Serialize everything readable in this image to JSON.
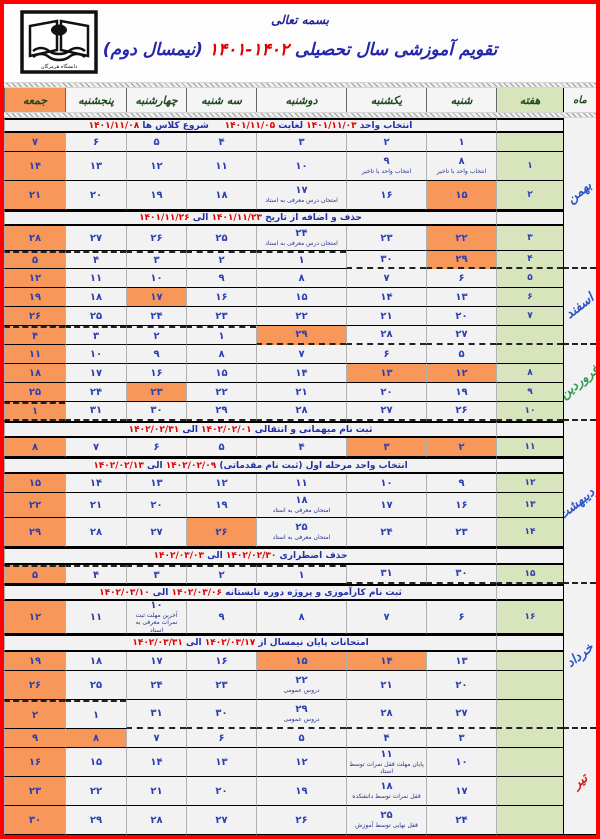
{
  "header": {
    "bismillah": "بسمه تعالی",
    "title_prefix": "تقویم آموزشی سال تحصیلی ",
    "title_years": "۱۴۰۲-۱۴۰۱",
    "title_suffix": " (نیمسال دوم)",
    "logo_caption": "دانشگاه هرمزگان"
  },
  "columns": {
    "month": "ماه",
    "week": "هفته",
    "days": [
      "شنبه",
      "یکشنبه",
      "دوشنبه",
      "سه شنبه",
      "چهارشنبه",
      "پنجشنبه",
      "جمعه"
    ]
  },
  "months": [
    {
      "label": "بهمن",
      "color": "#2f55cc"
    },
    {
      "label": "اسفند",
      "color": "#2f55cc"
    },
    {
      "label": "فروردین",
      "color": "#2f9e4f"
    },
    {
      "label": "اردیبهشت",
      "color": "#2f55cc"
    },
    {
      "label": "خرداد",
      "color": "#2f55cc"
    },
    {
      "label": "تیر",
      "color": "#d81a1a"
    }
  ],
  "colors": {
    "page_border": "#ff0000",
    "holiday_orange": "#f8975a",
    "week_green": "#d8e4bc",
    "number_blue": "#2d3eb0",
    "date_red": "#e00000"
  },
  "rows": [
    {
      "t": "b",
      "seg": [
        [
          "انتخاب واحد ",
          "b"
        ],
        [
          "۱۴۰۱/۱۱/۰۳",
          "r"
        ],
        [
          " لغایت ",
          "b"
        ],
        [
          "۱۴۰۱/۱۱/۰۵",
          "r"
        ],
        [
          "     شروع کلاس ها ",
          "b"
        ],
        [
          "۱۴۰۱/۱۱/۰۸",
          "r"
        ]
      ]
    },
    {
      "t": "w",
      "wk": "",
      "cells": [
        {
          "d": "۱"
        },
        {
          "d": "۲"
        },
        {
          "d": "۳"
        },
        {
          "d": "۴"
        },
        {
          "d": "۵"
        },
        {
          "d": "۶"
        },
        {
          "d": "۷"
        }
      ]
    },
    {
      "t": "w",
      "wk": "۱",
      "cells": [
        {
          "d": "۸",
          "n": "انتخاب واحد با تاخیر"
        },
        {
          "d": "۹",
          "n": "انتخاب واحد با تاخیر"
        },
        {
          "d": "۱۰"
        },
        {
          "d": "۱۱"
        },
        {
          "d": "۱۲"
        },
        {
          "d": "۱۳"
        },
        {
          "d": "۱۴"
        }
      ]
    },
    {
      "t": "w",
      "wk": "۲",
      "cells": [
        {
          "d": "۱۵",
          "hl": 1
        },
        {
          "d": "۱۶"
        },
        {
          "d": "۱۷",
          "n": "امتحان درس معرفی به استاد"
        },
        {
          "d": "۱۸"
        },
        {
          "d": "۱۹"
        },
        {
          "d": "۲۰"
        },
        {
          "d": "۲۱"
        }
      ]
    },
    {
      "t": "b",
      "seg": [
        [
          "حذف و اضافه از تاریخ ",
          "b"
        ],
        [
          "۱۴۰۱/۱۱/۲۳",
          "r"
        ],
        [
          " الی ",
          "b"
        ],
        [
          "۱۴۰۱/۱۱/۲۶",
          "r"
        ]
      ]
    },
    {
      "t": "w",
      "wk": "۳",
      "cells": [
        {
          "d": "۲۲",
          "hl": 1
        },
        {
          "d": "۲۳"
        },
        {
          "d": "۲۴",
          "n": "امتحان درس معرفی به استاد"
        },
        {
          "d": "۲۵"
        },
        {
          "d": "۲۶"
        },
        {
          "d": "۲۷"
        },
        {
          "d": "۲۸"
        }
      ]
    },
    {
      "t": "w",
      "wk": "۴",
      "wdb": 1,
      "cells": [
        {
          "d": "۲۹",
          "hl": 1,
          "db": 1
        },
        {
          "d": "۳۰",
          "db": 1
        },
        {
          "d": "۱",
          "dt": 1
        },
        {
          "d": "۲",
          "dt": 1
        },
        {
          "d": "۳",
          "dt": 1
        },
        {
          "d": "۴",
          "dt": 1
        },
        {
          "d": "۵",
          "dt": 1
        }
      ]
    },
    {
      "t": "w",
      "wk": "۵",
      "cells": [
        {
          "d": "۶"
        },
        {
          "d": "۷"
        },
        {
          "d": "۸"
        },
        {
          "d": "۹"
        },
        {
          "d": "۱۰"
        },
        {
          "d": "۱۱"
        },
        {
          "d": "۱۲"
        }
      ]
    },
    {
      "t": "w",
      "wk": "۶",
      "cells": [
        {
          "d": "۱۳"
        },
        {
          "d": "۱۴"
        },
        {
          "d": "۱۵"
        },
        {
          "d": "۱۶"
        },
        {
          "d": "۱۷",
          "hl": 1
        },
        {
          "d": "۱۸"
        },
        {
          "d": "۱۹"
        }
      ]
    },
    {
      "t": "w",
      "wk": "۷",
      "cells": [
        {
          "d": "۲۰"
        },
        {
          "d": "۲۱"
        },
        {
          "d": "۲۲"
        },
        {
          "d": "۲۳"
        },
        {
          "d": "۲۴"
        },
        {
          "d": "۲۵"
        },
        {
          "d": "۲۶"
        }
      ]
    },
    {
      "t": "w",
      "wk": "",
      "wdb": 1,
      "cells": [
        {
          "d": "۲۷",
          "db": 1
        },
        {
          "d": "۲۸",
          "db": 1
        },
        {
          "d": "۲۹",
          "hl": 1,
          "db": 1
        },
        {
          "d": "۱",
          "dt": 1
        },
        {
          "d": "۲",
          "dt": 1
        },
        {
          "d": "۳",
          "dt": 1
        },
        {
          "d": "۴",
          "dt": 1
        }
      ]
    },
    {
      "t": "w",
      "wk": "",
      "cells": [
        {
          "d": "۵"
        },
        {
          "d": "۶"
        },
        {
          "d": "۷"
        },
        {
          "d": "۸"
        },
        {
          "d": "۹"
        },
        {
          "d": "۱۰"
        },
        {
          "d": "۱۱"
        }
      ]
    },
    {
      "t": "w",
      "wk": "۸",
      "cells": [
        {
          "d": "۱۲",
          "hl": 1
        },
        {
          "d": "۱۳",
          "hl": 1
        },
        {
          "d": "۱۴"
        },
        {
          "d": "۱۵"
        },
        {
          "d": "۱۶"
        },
        {
          "d": "۱۷"
        },
        {
          "d": "۱۸"
        }
      ]
    },
    {
      "t": "w",
      "wk": "۹",
      "cells": [
        {
          "d": "۱۹"
        },
        {
          "d": "۲۰"
        },
        {
          "d": "۲۱"
        },
        {
          "d": "۲۲"
        },
        {
          "d": "۲۳",
          "hl": 1
        },
        {
          "d": "۲۴"
        },
        {
          "d": "۲۵"
        }
      ]
    },
    {
      "t": "w",
      "wk": "۱۰",
      "wdb": 1,
      "cells": [
        {
          "d": "۲۶",
          "db": 1
        },
        {
          "d": "۲۷",
          "db": 1
        },
        {
          "d": "۲۸",
          "db": 1
        },
        {
          "d": "۲۹",
          "db": 1
        },
        {
          "d": "۳۰",
          "db": 1
        },
        {
          "d": "۳۱",
          "db": 1
        },
        {
          "d": "۱",
          "dt": 1,
          "db": 1
        }
      ]
    },
    {
      "t": "b",
      "seg": [
        [
          "ثبت نام میهمانی و انتقالی ",
          "b"
        ],
        [
          "۱۴۰۲/۰۲/۰۱",
          "r"
        ],
        [
          " الی ",
          "b"
        ],
        [
          "۱۴۰۲/۰۲/۳۱",
          "r"
        ]
      ]
    },
    {
      "t": "w",
      "wk": "۱۱",
      "cells": [
        {
          "d": "۲",
          "hl": 1
        },
        {
          "d": "۳",
          "hl": 1
        },
        {
          "d": "۴"
        },
        {
          "d": "۵"
        },
        {
          "d": "۶"
        },
        {
          "d": "۷"
        },
        {
          "d": "۸"
        }
      ]
    },
    {
      "t": "b",
      "seg": [
        [
          "انتخاب واحد مرحله اول (ثبت نام مقدماتی) ",
          "b"
        ],
        [
          "۱۴۰۲/۰۲/۰۹",
          "r"
        ],
        [
          " الی ",
          "b"
        ],
        [
          "۱۴۰۲/۰۲/۱۳",
          "r"
        ]
      ]
    },
    {
      "t": "w",
      "wk": "۱۲",
      "cells": [
        {
          "d": "۹"
        },
        {
          "d": "۱۰"
        },
        {
          "d": "۱۱"
        },
        {
          "d": "۱۲"
        },
        {
          "d": "۱۳"
        },
        {
          "d": "۱۴"
        },
        {
          "d": "۱۵"
        }
      ]
    },
    {
      "t": "w",
      "wk": "۱۳",
      "cells": [
        {
          "d": "۱۶"
        },
        {
          "d": "۱۷"
        },
        {
          "d": "۱۸",
          "n": "امتحان معرفی به استاد"
        },
        {
          "d": "۱۹"
        },
        {
          "d": "۲۰"
        },
        {
          "d": "۲۱"
        },
        {
          "d": "۲۲"
        }
      ]
    },
    {
      "t": "w",
      "wk": "۱۴",
      "cells": [
        {
          "d": "۲۳"
        },
        {
          "d": "۲۴"
        },
        {
          "d": "۲۵",
          "n": "امتحان معرفی به استاد"
        },
        {
          "d": "۲۶",
          "hl": 1
        },
        {
          "d": "۲۷"
        },
        {
          "d": "۲۸"
        },
        {
          "d": "۲۹"
        }
      ]
    },
    {
      "t": "b",
      "seg": [
        [
          "حذف اضطراری ",
          "b"
        ],
        [
          "۱۴۰۲/۰۲/۳۰",
          "r"
        ],
        [
          " الی ",
          "b"
        ],
        [
          "۱۴۰۲/۰۳/۰۳",
          "r"
        ]
      ]
    },
    {
      "t": "w",
      "wk": "۱۵",
      "wdb": 1,
      "cells": [
        {
          "d": "۳۰",
          "db": 1
        },
        {
          "d": "۳۱",
          "db": 1
        },
        {
          "d": "۱",
          "dt": 1
        },
        {
          "d": "۲",
          "dt": 1
        },
        {
          "d": "۳",
          "dt": 1
        },
        {
          "d": "۴",
          "dt": 1
        },
        {
          "d": "۵",
          "dt": 1
        }
      ]
    },
    {
      "t": "b",
      "seg": [
        [
          "ثبت نام کارآموزی و پروژه دوره تابستانه ",
          "b"
        ],
        [
          "۱۴۰۲/۰۳/۰۶",
          "r"
        ],
        [
          " الی ",
          "b"
        ],
        [
          "۱۴۰۲/۰۳/۱۰",
          "r"
        ]
      ]
    },
    {
      "t": "w",
      "wk": "۱۶",
      "cells": [
        {
          "d": "۶"
        },
        {
          "d": "۷"
        },
        {
          "d": "۸"
        },
        {
          "d": "۹"
        },
        {
          "d": "۱۰",
          "n": "آخرین مهلت ثبت نمرات معرفی به استاد"
        },
        {
          "d": "۱۱"
        },
        {
          "d": "۱۲"
        }
      ]
    },
    {
      "t": "b",
      "seg": [
        [
          "امتحانات پایان نیمسال از ",
          "b"
        ],
        [
          "۱۴۰۲/۰۳/۱۷",
          "r"
        ],
        [
          " الی ",
          "b"
        ],
        [
          "۱۴۰۲/۰۳/۳۱",
          "r"
        ]
      ]
    },
    {
      "t": "w",
      "wk": "",
      "cells": [
        {
          "d": "۱۳"
        },
        {
          "d": "۱۴",
          "hl": 1
        },
        {
          "d": "۱۵",
          "hl": 1
        },
        {
          "d": "۱۶"
        },
        {
          "d": "۱۷"
        },
        {
          "d": "۱۸"
        },
        {
          "d": "۱۹"
        }
      ]
    },
    {
      "t": "w",
      "wk": "",
      "cells": [
        {
          "d": "۲۰"
        },
        {
          "d": "۲۱"
        },
        {
          "d": "۲۲",
          "n": "دروس عمومی"
        },
        {
          "d": "۲۳"
        },
        {
          "d": "۲۴"
        },
        {
          "d": "۲۵"
        },
        {
          "d": "۲۶"
        }
      ]
    },
    {
      "t": "w",
      "wk": "",
      "wdb": 1,
      "cells": [
        {
          "d": "۲۷",
          "db": 1
        },
        {
          "d": "۲۸",
          "db": 1
        },
        {
          "d": "۲۹",
          "db": 1,
          "n": "دروس عمومی"
        },
        {
          "d": "۳۰",
          "db": 1
        },
        {
          "d": "۳۱",
          "db": 1
        },
        {
          "d": "۱",
          "dt": 1
        },
        {
          "d": "۲",
          "dt": 1
        }
      ]
    },
    {
      "t": "w",
      "wk": "",
      "cells": [
        {
          "d": "۳"
        },
        {
          "d": "۴"
        },
        {
          "d": "۵"
        },
        {
          "d": "۶"
        },
        {
          "d": "۷"
        },
        {
          "d": "۸",
          "hl": 1
        },
        {
          "d": "۹"
        }
      ]
    },
    {
      "t": "w",
      "wk": "",
      "cells": [
        {
          "d": "۱۰"
        },
        {
          "d": "۱۱",
          "n": "پایان مهلت قفل نمرات توسط استاد"
        },
        {
          "d": "۱۲"
        },
        {
          "d": "۱۳"
        },
        {
          "d": "۱۴"
        },
        {
          "d": "۱۵"
        },
        {
          "d": "۱۶"
        }
      ]
    },
    {
      "t": "w",
      "wk": "",
      "cells": [
        {
          "d": "۱۷"
        },
        {
          "d": "۱۸",
          "n": "قفل نمرات توسط دانشکده"
        },
        {
          "d": "۱۹"
        },
        {
          "d": "۲۰"
        },
        {
          "d": "۲۱"
        },
        {
          "d": "۲۲"
        },
        {
          "d": "۲۳"
        }
      ]
    },
    {
      "t": "w",
      "wk": "",
      "cells": [
        {
          "d": "۲۴"
        },
        {
          "d": "۲۵",
          "n": "قفل نهایی توسط آموزش"
        },
        {
          "d": "۲۶"
        },
        {
          "d": "۲۷"
        },
        {
          "d": "۲۸"
        },
        {
          "d": "۲۹"
        },
        {
          "d": "۳۰"
        }
      ]
    }
  ]
}
